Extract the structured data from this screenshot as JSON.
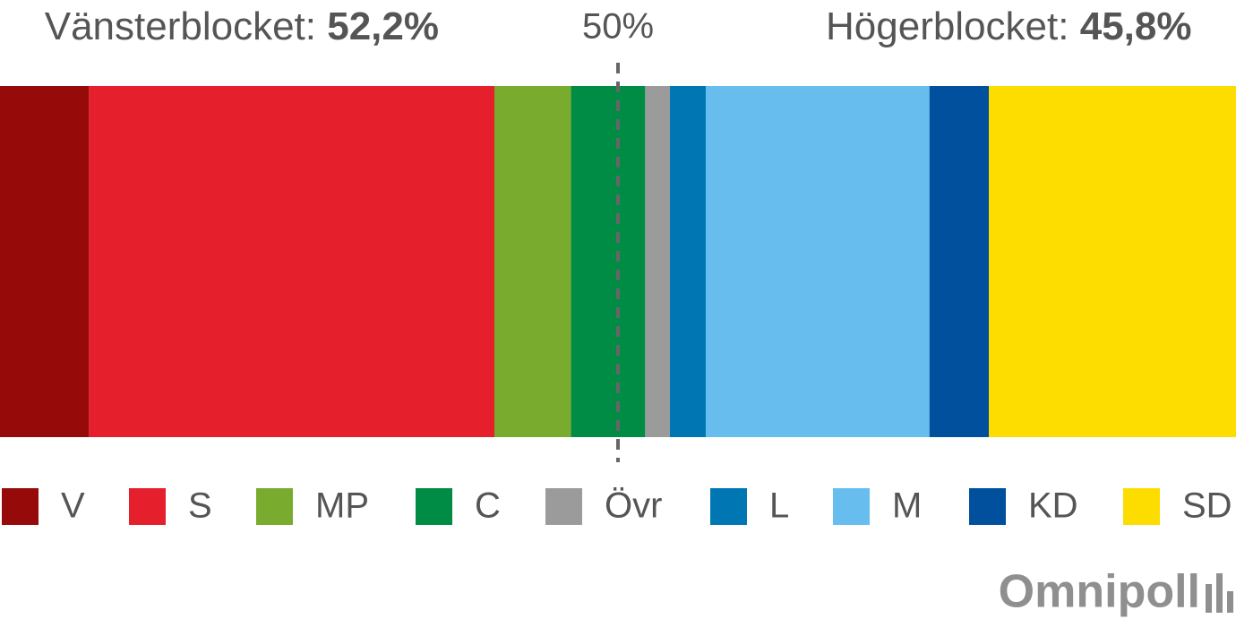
{
  "chart_data": {
    "type": "stacked-bar",
    "xlim": [
      0,
      100
    ],
    "series": [
      {
        "name": "V",
        "color": "#970a0a",
        "values": [
          7.2
        ]
      },
      {
        "name": "S",
        "color": "#e51f2c",
        "values": [
          32.8
        ]
      },
      {
        "name": "MP",
        "color": "#79ab2e",
        "values": [
          6.2
        ]
      },
      {
        "name": "C",
        "color": "#008c45",
        "values": [
          6.0
        ]
      },
      {
        "name": "Övr",
        "color": "#9b9b9b",
        "values": [
          2.0
        ]
      },
      {
        "name": "L",
        "color": "#0076b3",
        "values": [
          2.9
        ]
      },
      {
        "name": "M",
        "color": "#66bdee",
        "values": [
          18.1
        ]
      },
      {
        "name": "KD",
        "color": "#00509e",
        "values": [
          4.8
        ]
      },
      {
        "name": "SD",
        "color": "#fddc00",
        "values": [
          20.0
        ]
      }
    ],
    "blocks": {
      "labels": [
        "Vänsterblocket:",
        "Högerblocket:"
      ],
      "values": [
        52.2,
        45.8
      ],
      "value_labels": [
        "52,2%",
        "45,8%"
      ]
    },
    "reference_line": {
      "value": 50,
      "label": "50%"
    }
  },
  "logo": "Omnipoll"
}
